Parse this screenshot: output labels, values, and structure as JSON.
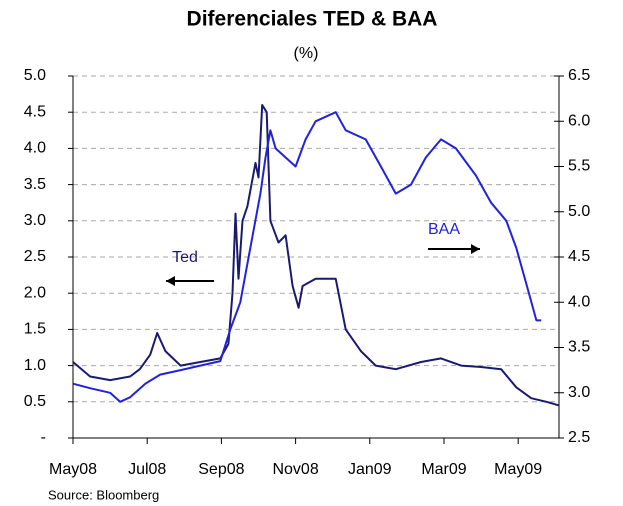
{
  "chart_data": {
    "type": "line",
    "title": "Diferenciales TED & BAA",
    "subtitle": "(%)",
    "source": "Source: Bloomberg",
    "annotations": [
      {
        "text": "Ted",
        "direction": "left"
      },
      {
        "text": "BAA",
        "direction": "right"
      }
    ],
    "xlim": [
      0,
      13.1
    ],
    "xticks": [
      {
        "value": 0,
        "label": "May08"
      },
      {
        "value": 2,
        "label": "Jul08"
      },
      {
        "value": 4,
        "label": "Sep08"
      },
      {
        "value": 6,
        "label": "Nov08"
      },
      {
        "value": 8,
        "label": "Jan09"
      },
      {
        "value": 10,
        "label": "Mar09"
      },
      {
        "value": 12,
        "label": "May09"
      }
    ],
    "ylim": [
      0,
      5
    ],
    "yticks": [
      {
        "value": 0,
        "label": "-"
      },
      {
        "value": 0.5,
        "label": "0.5"
      },
      {
        "value": 1,
        "label": "1.0"
      },
      {
        "value": 1.5,
        "label": "1.5"
      },
      {
        "value": 2,
        "label": "2.0"
      },
      {
        "value": 2.5,
        "label": "2.5"
      },
      {
        "value": 3,
        "label": "3.0"
      },
      {
        "value": 3.5,
        "label": "3.5"
      },
      {
        "value": 4,
        "label": "4.0"
      },
      {
        "value": 4.5,
        "label": "4.5"
      },
      {
        "value": 5,
        "label": "5.0"
      }
    ],
    "y2lim": [
      2.5,
      6.5
    ],
    "y2ticks": [
      2.5,
      {
        "value": 3,
        "label": "3.0"
      },
      3.5,
      {
        "value": 4,
        "label": "4.0"
      },
      4.5,
      {
        "value": 5,
        "label": "5.0"
      },
      5.5,
      {
        "value": 6,
        "label": "6.0"
      },
      6.5
    ],
    "grid": true,
    "series": [
      {
        "name": "Ted",
        "color": "#1a1a70",
        "axis": "y",
        "x": [
          0,
          0.46,
          1.0,
          1.54,
          1.8,
          2.08,
          2.27,
          2.49,
          2.9,
          3.43,
          3.97,
          4.19,
          4.3,
          4.38,
          4.46,
          4.57,
          4.7,
          4.92,
          5.0,
          5.1,
          5.22,
          5.32,
          5.54,
          5.73,
          5.92,
          6.08,
          6.19,
          6.54,
          7.08,
          7.35,
          7.76,
          8.16,
          8.7,
          9.38,
          9.92,
          10.46,
          11.0,
          11.54,
          11.95,
          12.35,
          12.76,
          13.1
        ],
        "values": [
          1.05,
          0.85,
          0.8,
          0.85,
          0.95,
          1.15,
          1.45,
          1.2,
          1.0,
          1.05,
          1.1,
          1.3,
          2.0,
          3.1,
          2.2,
          3.0,
          3.2,
          3.8,
          3.6,
          4.6,
          4.5,
          3.0,
          2.7,
          2.8,
          2.1,
          1.8,
          2.1,
          2.2,
          2.2,
          1.5,
          1.2,
          1.0,
          0.95,
          1.05,
          1.1,
          1.0,
          0.98,
          0.95,
          0.7,
          0.55,
          0.5,
          0.45
        ]
      },
      {
        "name": "BAA",
        "color": "#2222dd",
        "axis": "y2",
        "x": [
          0,
          0.46,
          1.0,
          1.27,
          1.54,
          1.95,
          2.35,
          2.9,
          3.43,
          3.97,
          4.24,
          4.51,
          4.78,
          5.05,
          5.19,
          5.32,
          5.46,
          5.73,
          6.0,
          6.27,
          6.54,
          7.08,
          7.35,
          7.89,
          8.3,
          8.7,
          9.11,
          9.51,
          9.92,
          10.32,
          10.86,
          11.27,
          11.68,
          11.95,
          12.22,
          12.49,
          12.62
        ],
        "values": [
          3.1,
          3.05,
          3.0,
          2.9,
          2.95,
          3.1,
          3.2,
          3.25,
          3.3,
          3.35,
          3.7,
          4.0,
          4.6,
          5.2,
          5.6,
          5.9,
          5.7,
          5.6,
          5.5,
          5.8,
          6.0,
          6.1,
          5.9,
          5.8,
          5.5,
          5.2,
          5.3,
          5.6,
          5.8,
          5.7,
          5.4,
          5.1,
          4.9,
          4.6,
          4.2,
          3.8,
          3.8
        ]
      }
    ]
  }
}
